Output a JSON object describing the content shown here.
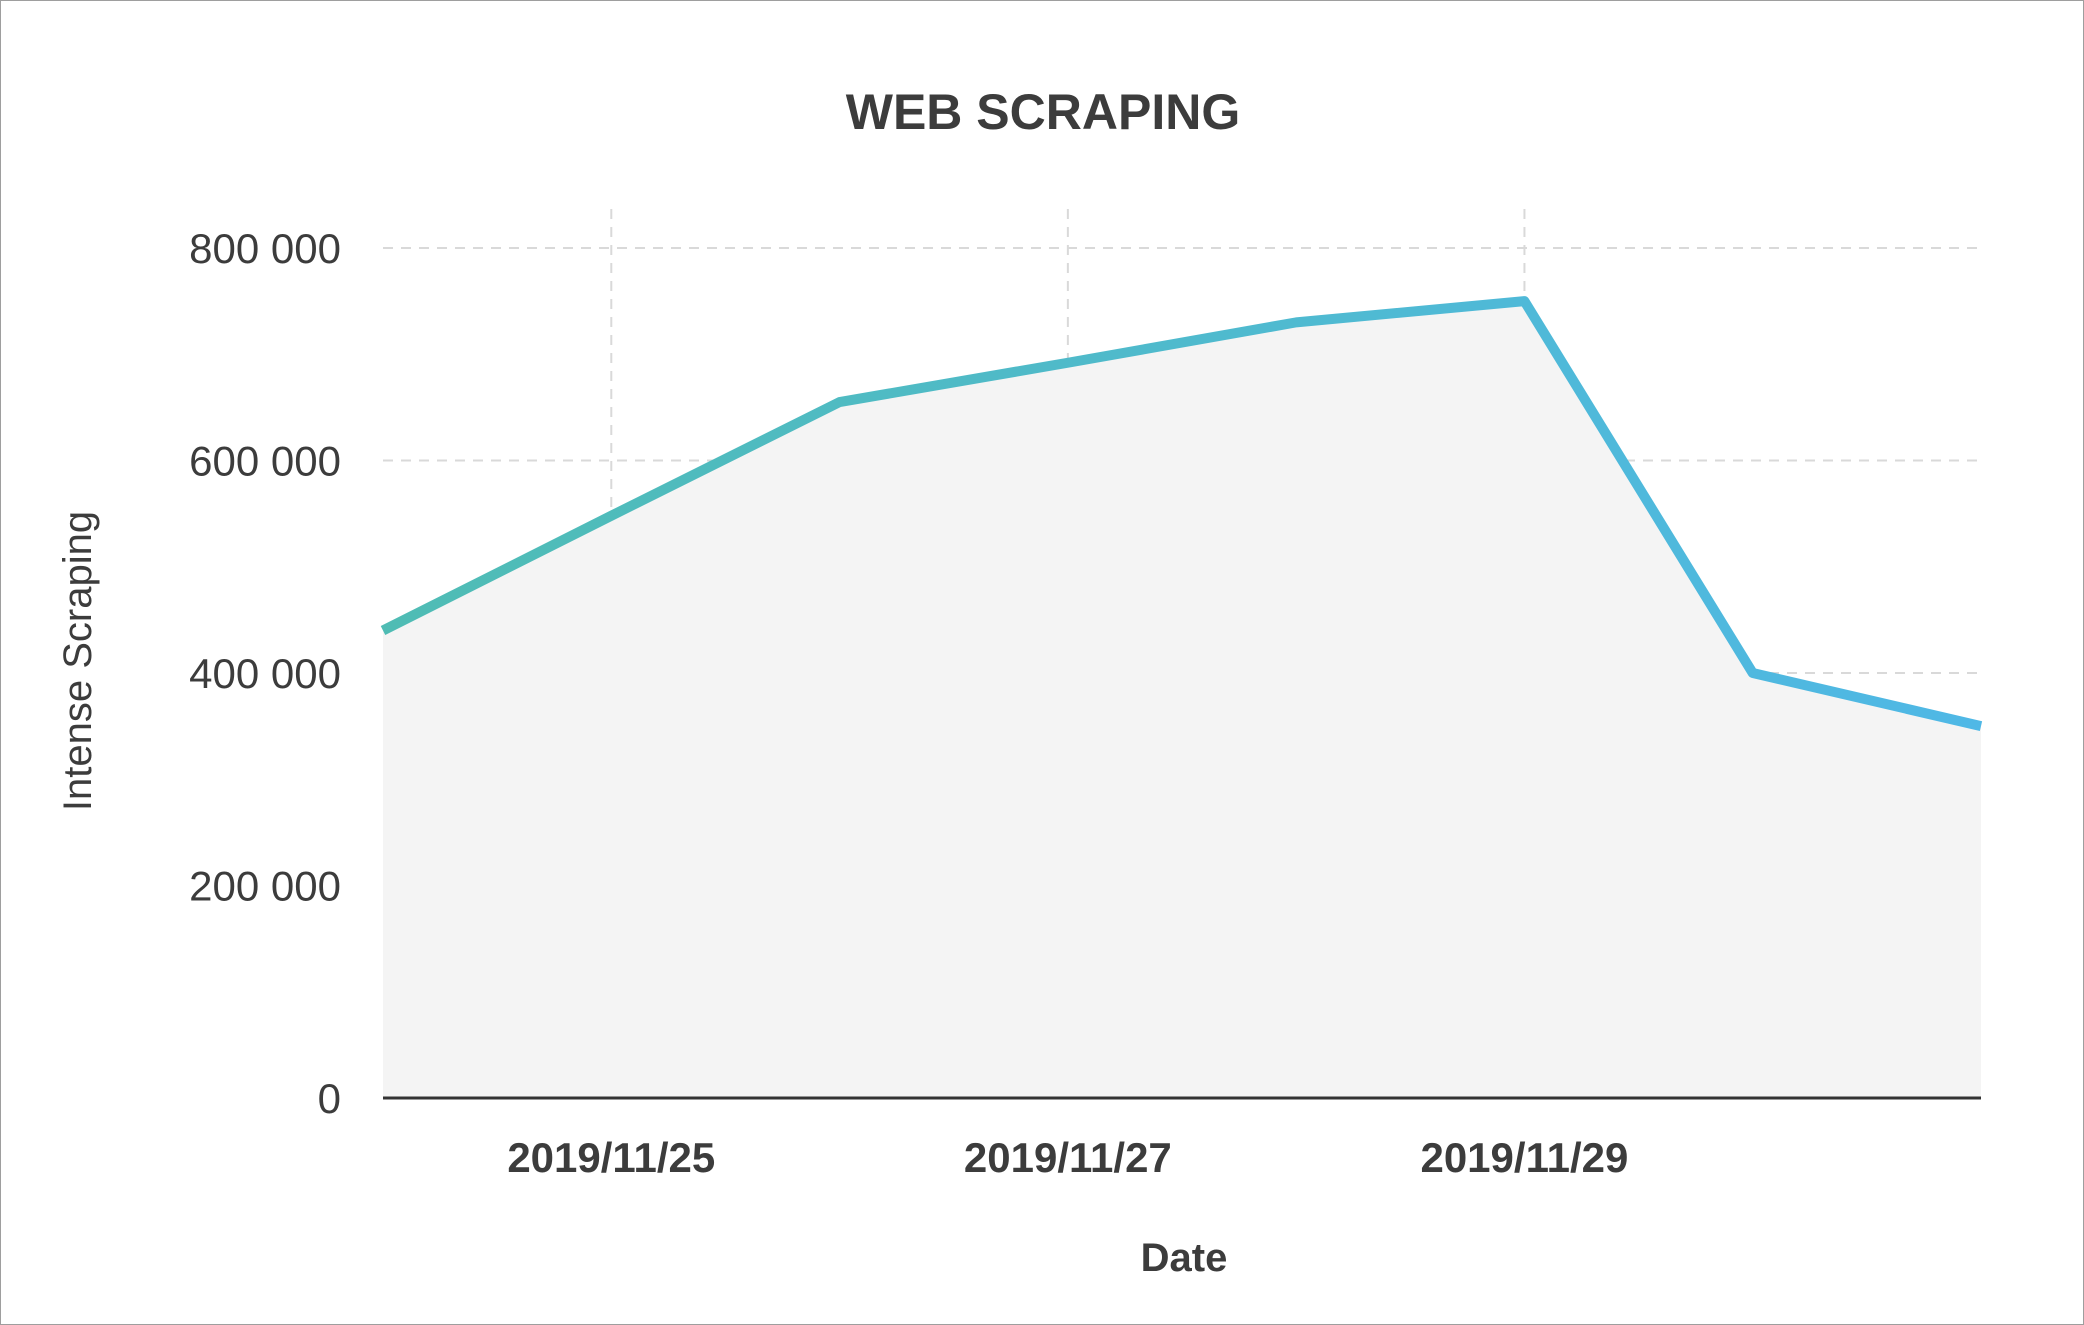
{
  "chart_data": {
    "type": "area",
    "title": "WEB SCRAPING",
    "xlabel": "Date",
    "ylabel": "Intense Scraping",
    "x": [
      "2019/11/24",
      "2019/11/25",
      "2019/11/26",
      "2019/11/27",
      "2019/11/28",
      "2019/11/29",
      "2019/11/30",
      "2019/12/01"
    ],
    "x_tick_labels": [
      "2019/11/25",
      "2019/11/27",
      "2019/11/29"
    ],
    "x_tick_values": [
      "2019/11/25",
      "2019/11/27",
      "2019/11/29"
    ],
    "ylim": [
      0,
      800000
    ],
    "y_ticks": [
      0,
      200000,
      400000,
      600000,
      800000
    ],
    "y_tick_labels": [
      "0",
      "200 000",
      "400 000",
      "600 000",
      "800 000"
    ],
    "series": [
      {
        "values": [
          440000,
          548000,
          655000,
          692000,
          730000,
          750000,
          400000,
          350000
        ]
      }
    ],
    "grid": true,
    "legend": false,
    "colors": {
      "line_start": "#4fbcb4",
      "line_end": "#4fb8e6",
      "fill": "#f4f4f4",
      "grid": "#d9d9d9",
      "axis": "#333333",
      "text": "#3c3c3c"
    }
  }
}
